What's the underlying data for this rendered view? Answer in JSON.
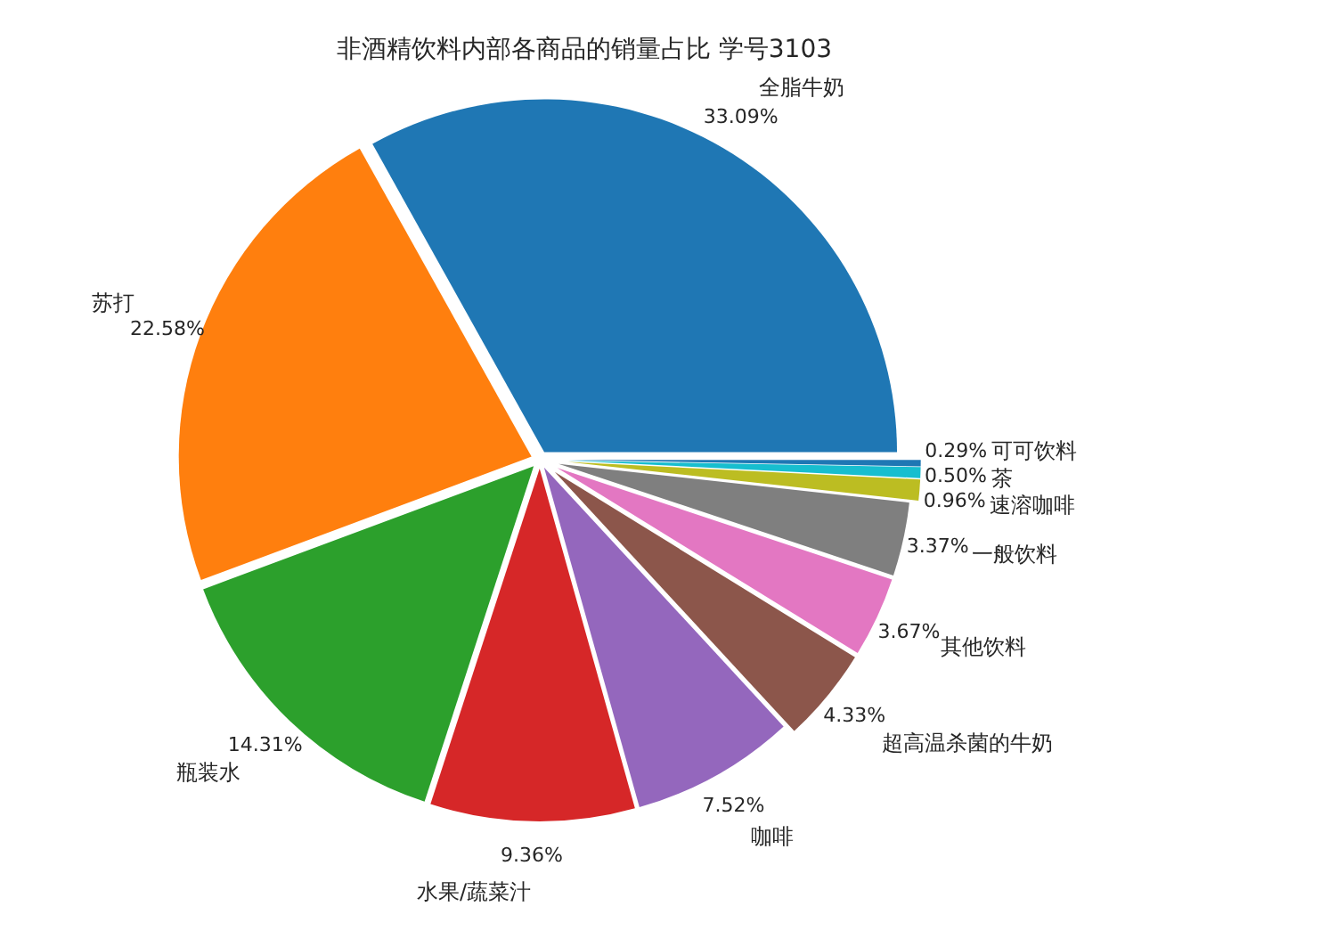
{
  "chart_data": {
    "type": "pie",
    "title": "非酒精饮料内部各商品的销量占比 学号3103",
    "categories": [
      "全脂牛奶",
      "苏打",
      "瓶装水",
      "水果/蔬菜汁",
      "咖啡",
      "超高温杀菌的牛奶",
      "其他饮料",
      "一般饮料",
      "速溶咖啡",
      "茶",
      "可可饮料"
    ],
    "values": [
      33.09,
      22.58,
      14.31,
      9.36,
      7.52,
      4.33,
      3.67,
      3.37,
      0.96,
      0.5,
      0.29
    ],
    "value_labels": [
      "33.09%",
      "22.58%",
      "14.31%",
      "9.36%",
      "7.52%",
      "4.33%",
      "3.67%",
      "3.37%",
      "0.96%",
      "0.50%",
      "0.29%"
    ],
    "colors": [
      "#1f77b4",
      "#ff7f0e",
      "#2ca02c",
      "#d62728",
      "#9467bd",
      "#8c564b",
      "#e377c2",
      "#7f7f7f",
      "#bcbd22",
      "#17becf",
      "#1f77b4"
    ]
  }
}
